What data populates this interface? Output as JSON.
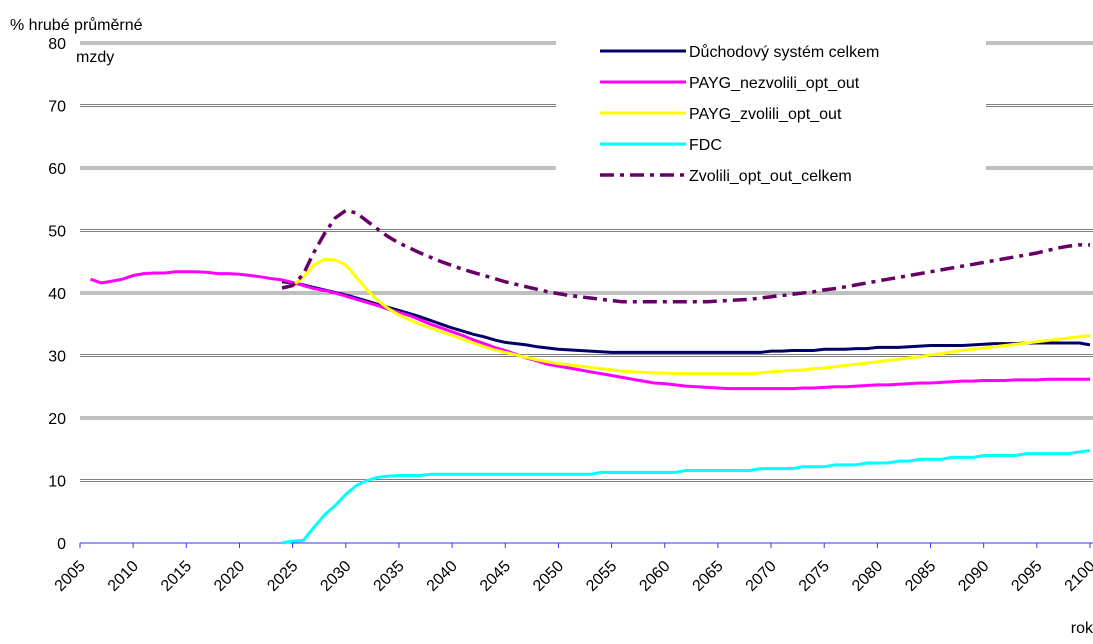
{
  "chart_data": {
    "type": "line",
    "ylabel": [
      "% hrubé průměrné",
      "mzdy"
    ],
    "xlabel": "rok",
    "xlim": [
      2005,
      2100
    ],
    "xticks": [
      2005,
      2010,
      2015,
      2020,
      2025,
      2030,
      2035,
      2040,
      2045,
      2050,
      2055,
      2060,
      2065,
      2070,
      2075,
      2080,
      2085,
      2090,
      2095,
      2100
    ],
    "ylim": [
      0,
      80
    ],
    "yticks": [
      0,
      10,
      20,
      30,
      40,
      50,
      60,
      70,
      80
    ],
    "grid": true,
    "legend": "top-right",
    "x": [
      2005,
      2006,
      2007,
      2008,
      2009,
      2010,
      2011,
      2012,
      2013,
      2014,
      2015,
      2016,
      2017,
      2018,
      2019,
      2020,
      2021,
      2022,
      2023,
      2024,
      2025,
      2026,
      2027,
      2028,
      2029,
      2030,
      2031,
      2032,
      2033,
      2034,
      2035,
      2036,
      2037,
      2038,
      2039,
      2040,
      2041,
      2042,
      2043,
      2044,
      2045,
      2046,
      2047,
      2048,
      2049,
      2050,
      2051,
      2052,
      2053,
      2054,
      2055,
      2056,
      2057,
      2058,
      2059,
      2060,
      2061,
      2062,
      2063,
      2064,
      2065,
      2066,
      2067,
      2068,
      2069,
      2070,
      2071,
      2072,
      2073,
      2074,
      2075,
      2076,
      2077,
      2078,
      2079,
      2080,
      2081,
      2082,
      2083,
      2084,
      2085,
      2086,
      2087,
      2088,
      2089,
      2090,
      2091,
      2092,
      2093,
      2094,
      2095,
      2096,
      2097,
      2098,
      2099,
      2100
    ],
    "series": [
      {
        "name": "Důchodový systém celkem",
        "color": "#000066",
        "style": "solid",
        "values": [
          null,
          null,
          null,
          null,
          null,
          null,
          null,
          null,
          null,
          null,
          null,
          null,
          null,
          null,
          null,
          null,
          null,
          null,
          null,
          41.8,
          41.6,
          41.3,
          40.9,
          40.5,
          40.1,
          39.7,
          39.2,
          38.7,
          38.2,
          37.7,
          37.2,
          36.7,
          36.2,
          35.6,
          35.0,
          34.4,
          33.9,
          33.4,
          33.0,
          32.5,
          32.1,
          31.9,
          31.7,
          31.4,
          31.2,
          31.0,
          30.9,
          30.8,
          30.7,
          30.6,
          30.5,
          30.5,
          30.5,
          30.5,
          30.5,
          30.5,
          30.5,
          30.5,
          30.5,
          30.5,
          30.5,
          30.5,
          30.5,
          30.5,
          30.5,
          30.7,
          30.7,
          30.8,
          30.8,
          30.8,
          31.0,
          31.0,
          31.0,
          31.1,
          31.1,
          31.3,
          31.3,
          31.3,
          31.4,
          31.5,
          31.6,
          31.6,
          31.6,
          31.6,
          31.7,
          31.8,
          31.9,
          31.9,
          31.9,
          32.0,
          32.0,
          32.0,
          32.0,
          32.0,
          32.0,
          31.7
        ]
      },
      {
        "name": "PAYG_nezvolili_opt_out",
        "color": "#ff00ff",
        "style": "solid",
        "values": [
          null,
          42.2,
          41.6,
          41.9,
          42.2,
          42.8,
          43.1,
          43.2,
          43.2,
          43.4,
          43.4,
          43.4,
          43.3,
          43.1,
          43.1,
          43.0,
          42.8,
          42.6,
          42.3,
          42.1,
          41.7,
          41.2,
          40.7,
          40.4,
          40.0,
          39.5,
          39.0,
          38.5,
          38.0,
          37.4,
          36.9,
          36.4,
          35.7,
          35.0,
          34.4,
          33.8,
          33.2,
          32.5,
          31.9,
          31.3,
          30.8,
          30.2,
          29.6,
          29.1,
          28.6,
          28.3,
          28.0,
          27.7,
          27.4,
          27.1,
          26.8,
          26.5,
          26.2,
          25.9,
          25.6,
          25.5,
          25.3,
          25.1,
          25.0,
          24.9,
          24.8,
          24.7,
          24.7,
          24.7,
          24.7,
          24.7,
          24.7,
          24.7,
          24.8,
          24.8,
          24.9,
          25.0,
          25.0,
          25.1,
          25.2,
          25.3,
          25.3,
          25.4,
          25.5,
          25.6,
          25.6,
          25.7,
          25.8,
          25.9,
          25.9,
          26.0,
          26.0,
          26.0,
          26.1,
          26.1,
          26.1,
          26.2,
          26.2,
          26.2,
          26.2,
          26.2
        ]
      },
      {
        "name": "PAYG_zvolili_opt_out",
        "color": "#ffff00",
        "style": "solid",
        "values": [
          null,
          null,
          null,
          null,
          null,
          null,
          null,
          null,
          null,
          null,
          null,
          null,
          null,
          null,
          null,
          null,
          null,
          null,
          null,
          40.8,
          41.2,
          42.5,
          44.5,
          45.4,
          45.3,
          44.5,
          42.5,
          40.5,
          38.8,
          37.5,
          36.5,
          35.7,
          35.0,
          34.4,
          33.8,
          33.2,
          32.6,
          32.0,
          31.4,
          30.9,
          30.5,
          30.1,
          29.7,
          29.3,
          29.0,
          28.7,
          28.5,
          28.3,
          28.1,
          27.9,
          27.7,
          27.5,
          27.4,
          27.3,
          27.2,
          27.2,
          27.1,
          27.1,
          27.1,
          27.1,
          27.1,
          27.1,
          27.1,
          27.1,
          27.2,
          27.4,
          27.5,
          27.6,
          27.7,
          27.9,
          28.0,
          28.2,
          28.4,
          28.6,
          28.8,
          29.0,
          29.2,
          29.4,
          29.6,
          29.8,
          30.1,
          30.3,
          30.6,
          30.8,
          31.0,
          31.2,
          31.4,
          31.6,
          31.8,
          32.0,
          32.2,
          32.4,
          32.6,
          32.8,
          33.0,
          33.2
        ]
      },
      {
        "name": "FDC",
        "color": "#00ffff",
        "style": "solid",
        "values": [
          null,
          null,
          null,
          null,
          null,
          null,
          null,
          null,
          null,
          null,
          null,
          null,
          null,
          null,
          null,
          null,
          null,
          null,
          null,
          0,
          0.3,
          0.4,
          2.5,
          4.5,
          6.0,
          7.8,
          9.2,
          10.0,
          10.5,
          10.7,
          10.8,
          10.8,
          10.8,
          11.0,
          11.0,
          11.0,
          11.0,
          11.0,
          11.0,
          11.0,
          11.0,
          11.0,
          11.0,
          11.0,
          11.0,
          11.0,
          11.0,
          11.0,
          11.0,
          11.3,
          11.3,
          11.3,
          11.3,
          11.3,
          11.3,
          11.3,
          11.3,
          11.6,
          11.6,
          11.6,
          11.6,
          11.6,
          11.6,
          11.6,
          11.9,
          11.9,
          11.9,
          11.9,
          12.2,
          12.2,
          12.2,
          12.5,
          12.5,
          12.5,
          12.8,
          12.8,
          12.8,
          13.1,
          13.1,
          13.4,
          13.4,
          13.4,
          13.7,
          13.7,
          13.7,
          14.0,
          14.0,
          14.0,
          14.0,
          14.3,
          14.3,
          14.3,
          14.3,
          14.3,
          14.6,
          14.8
        ]
      },
      {
        "name": "Zvolili_opt_out_celkem",
        "color": "#660066",
        "style": "dashed",
        "values": [
          null,
          null,
          null,
          null,
          null,
          null,
          null,
          null,
          null,
          null,
          null,
          null,
          null,
          null,
          null,
          null,
          null,
          null,
          null,
          40.8,
          41.2,
          43.0,
          46.5,
          49.5,
          52.0,
          53.2,
          52.8,
          51.5,
          50.2,
          49.0,
          48.0,
          47.2,
          46.4,
          45.7,
          45.0,
          44.4,
          43.8,
          43.3,
          42.8,
          42.3,
          41.8,
          41.4,
          41.0,
          40.6,
          40.2,
          39.9,
          39.6,
          39.4,
          39.2,
          39.0,
          38.8,
          38.6,
          38.6,
          38.6,
          38.6,
          38.6,
          38.6,
          38.6,
          38.6,
          38.6,
          38.7,
          38.8,
          38.9,
          39.0,
          39.2,
          39.4,
          39.6,
          39.8,
          40.0,
          40.2,
          40.5,
          40.7,
          41.0,
          41.3,
          41.6,
          41.9,
          42.2,
          42.5,
          42.8,
          43.1,
          43.4,
          43.7,
          44.0,
          44.3,
          44.6,
          44.9,
          45.2,
          45.5,
          45.8,
          46.1,
          46.4,
          46.8,
          47.2,
          47.5,
          47.7,
          47.7
        ]
      }
    ]
  }
}
